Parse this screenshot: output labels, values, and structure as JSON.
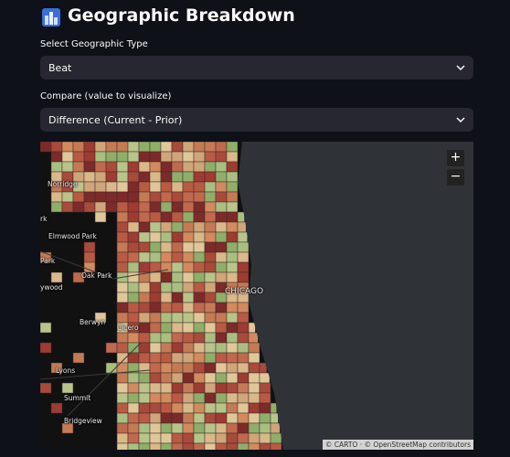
{
  "title": "Geographic Breakdown",
  "controls": [
    {
      "label": "Select Geographic Type",
      "value": "Beat"
    },
    {
      "label": "Compare (value to visualize)",
      "value": "Difference (Current - Prior)"
    }
  ],
  "map": {
    "place_labels": [
      "Norridge",
      "rk",
      "Elmwood Park",
      "Park",
      "Oak Park",
      "ywood",
      "Berwyn",
      "Cicero",
      "Lyons",
      "Summit",
      "Bridgeview",
      "CHICAGO"
    ],
    "zoom_in": "+",
    "zoom_out": "−",
    "attribution": "© CARTO · © OpenStreetMap contributors"
  }
}
